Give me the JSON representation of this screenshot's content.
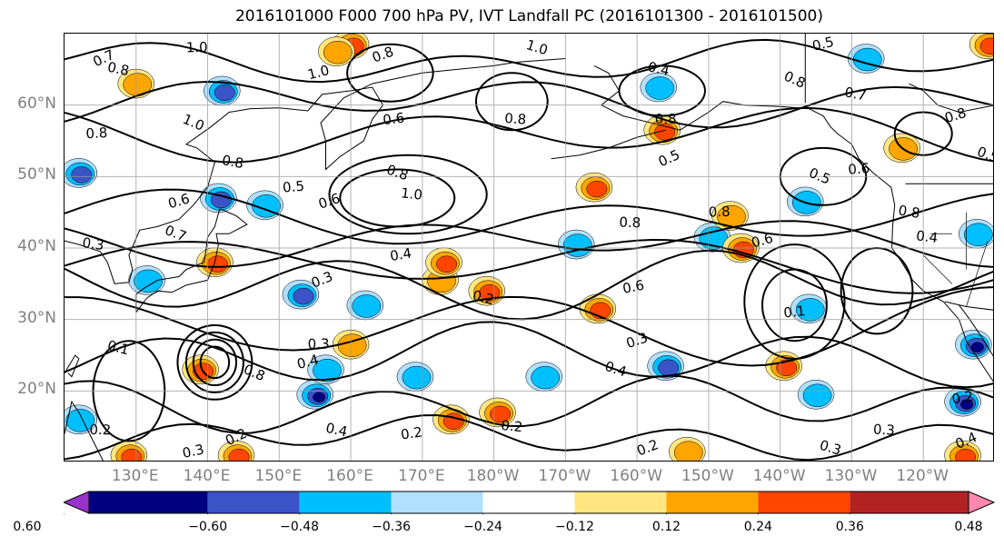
{
  "title": "2016101000 F000 700 hPa PV, IVT Landfall PC (2016101300 - 2016101500)",
  "lat_labels": [
    "60°N",
    "50°N",
    "40°N",
    "30°N",
    "20°N"
  ],
  "lon_labels": [
    "130°E",
    "140°E",
    "150°E",
    "160°E",
    "170°E",
    "180°W",
    "170°W",
    "160°W",
    "150°W",
    "140°W",
    "130°W",
    "120°W"
  ],
  "map_extent": {
    "lon_min_east": 120,
    "lon_max_east": 250,
    "lat_min": 10,
    "lat_max": 70
  },
  "colorbar": {
    "ticks": [
      "−0.60",
      "−0.48",
      "−0.36",
      "−0.24",
      "−0.12",
      "0.12",
      "0.24",
      "0.36",
      "0.48",
      "0.60"
    ],
    "colors": [
      "#9932CC",
      "#000080",
      "#3A54C8",
      "#00BFFF",
      "#B0E0FF",
      "#FFFFFF",
      "#FFE680",
      "#FFA500",
      "#FF4500",
      "#B22222",
      "#FF88B0"
    ]
  },
  "contour_labels": [
    {
      "text": "0.7",
      "lon": 125.5,
      "lat": 66.5
    },
    {
      "text": "0.8",
      "lon": 127.5,
      "lat": 65.0
    },
    {
      "text": "1.0",
      "lon": 138.5,
      "lat": 68.0
    },
    {
      "text": "1.0",
      "lon": 155.5,
      "lat": 64.5
    },
    {
      "text": "1.0",
      "lon": 138.0,
      "lat": 57.5
    },
    {
      "text": "0.8",
      "lon": 143.5,
      "lat": 52.0
    },
    {
      "text": "0.8",
      "lon": 124.5,
      "lat": 56.0
    },
    {
      "text": "0.6",
      "lon": 136.0,
      "lat": 46.5
    },
    {
      "text": "0.7",
      "lon": 135.5,
      "lat": 42.0
    },
    {
      "text": "0.3",
      "lon": 124.0,
      "lat": 40.5
    },
    {
      "text": "0.5",
      "lon": 152.0,
      "lat": 48.5
    },
    {
      "text": "0.6",
      "lon": 157.0,
      "lat": 46.5
    },
    {
      "text": "0.8",
      "lon": 166.5,
      "lat": 50.5
    },
    {
      "text": "1.0",
      "lon": 168.5,
      "lat": 47.5
    },
    {
      "text": "0.6",
      "lon": 166.0,
      "lat": 58.0
    },
    {
      "text": "0.8",
      "lon": 164.5,
      "lat": 67.0
    },
    {
      "text": "1.0",
      "lon": 186.0,
      "lat": 68.0
    },
    {
      "text": "0.8",
      "lon": 183.0,
      "lat": 58.0
    },
    {
      "text": "0.4",
      "lon": 167.0,
      "lat": 39.0
    },
    {
      "text": "0.3",
      "lon": 156.0,
      "lat": 35.5
    },
    {
      "text": "0.2",
      "lon": 178.5,
      "lat": 33.0
    },
    {
      "text": "0.8",
      "lon": 199.0,
      "lat": 43.5
    },
    {
      "text": "0.6",
      "lon": 199.5,
      "lat": 34.5
    },
    {
      "text": "0.5",
      "lon": 204.5,
      "lat": 52.5
    },
    {
      "text": "0.4",
      "lon": 203.0,
      "lat": 65.0
    },
    {
      "text": "0.8",
      "lon": 204.0,
      "lat": 58.0
    },
    {
      "text": "0.5",
      "lon": 226.0,
      "lat": 68.5
    },
    {
      "text": "0.8",
      "lon": 222.0,
      "lat": 63.5
    },
    {
      "text": "0.7",
      "lon": 230.5,
      "lat": 61.5
    },
    {
      "text": "0.8",
      "lon": 211.5,
      "lat": 45.0
    },
    {
      "text": "0.6",
      "lon": 217.5,
      "lat": 41.0
    },
    {
      "text": "0.5",
      "lon": 225.5,
      "lat": 50.0
    },
    {
      "text": "0.8",
      "lon": 238.0,
      "lat": 45.0
    },
    {
      "text": "0.6",
      "lon": 231.0,
      "lat": 51.0
    },
    {
      "text": "0.8",
      "lon": 244.5,
      "lat": 58.5
    },
    {
      "text": "0.5",
      "lon": 249.0,
      "lat": 53.0
    },
    {
      "text": "0.4",
      "lon": 240.5,
      "lat": 41.5
    },
    {
      "text": "0.1",
      "lon": 222.0,
      "lat": 31.0
    },
    {
      "text": "0.3",
      "lon": 200.0,
      "lat": 27.0
    },
    {
      "text": "0.4",
      "lon": 197.0,
      "lat": 23.0
    },
    {
      "text": "0.2",
      "lon": 182.5,
      "lat": 15.0
    },
    {
      "text": "0.2",
      "lon": 168.5,
      "lat": 14.0
    },
    {
      "text": "0.2",
      "lon": 201.5,
      "lat": 12.0
    },
    {
      "text": "0.3",
      "lon": 227.0,
      "lat": 12.0
    },
    {
      "text": "0.3",
      "lon": 234.5,
      "lat": 14.5
    },
    {
      "text": "0.2",
      "lon": 245.5,
      "lat": 19.0
    },
    {
      "text": "0.4",
      "lon": 246.0,
      "lat": 13.0
    },
    {
      "text": "0.1",
      "lon": 127.5,
      "lat": 26.0
    },
    {
      "text": "0.2",
      "lon": 125.0,
      "lat": 14.5
    },
    {
      "text": "0.3",
      "lon": 138.0,
      "lat": 11.5
    },
    {
      "text": "0.2",
      "lon": 144.0,
      "lat": 13.5
    },
    {
      "text": "0.4",
      "lon": 158.0,
      "lat": 14.5
    },
    {
      "text": "0.3",
      "lon": 155.5,
      "lat": 26.5
    },
    {
      "text": "0.4",
      "lon": 154.0,
      "lat": 24.0
    },
    {
      "text": "0.8",
      "lon": 146.5,
      "lat": 22.5
    }
  ],
  "shading_spots": [
    {
      "lon": 142.0,
      "lat": 62.0,
      "v": -0.4
    },
    {
      "lon": 130.0,
      "lat": 63.0,
      "v": 0.28
    },
    {
      "lon": 160.0,
      "lat": 68.5,
      "v": 0.4
    },
    {
      "lon": 158.0,
      "lat": 67.5,
      "v": 0.26
    },
    {
      "lon": 122.0,
      "lat": 50.5,
      "v": -0.45
    },
    {
      "lon": 141.5,
      "lat": 47.0,
      "v": -0.42
    },
    {
      "lon": 148.0,
      "lat": 46.0,
      "v": -0.3
    },
    {
      "lon": 141.0,
      "lat": 38.0,
      "v": 0.38
    },
    {
      "lon": 131.5,
      "lat": 35.5,
      "v": -0.28
    },
    {
      "lon": 153.0,
      "lat": 33.5,
      "v": -0.4
    },
    {
      "lon": 162.0,
      "lat": 32.0,
      "v": -0.26
    },
    {
      "lon": 160.0,
      "lat": 26.5,
      "v": 0.35
    },
    {
      "lon": 139.0,
      "lat": 23.0,
      "v": 0.38
    },
    {
      "lon": 155.0,
      "lat": 19.5,
      "v": -0.5
    },
    {
      "lon": 156.5,
      "lat": 23.0,
      "v": -0.3
    },
    {
      "lon": 172.5,
      "lat": 35.5,
      "v": 0.32
    },
    {
      "lon": 173.0,
      "lat": 38.0,
      "v": 0.42
    },
    {
      "lon": 179.0,
      "lat": 34.0,
      "v": 0.36
    },
    {
      "lon": 169.0,
      "lat": 22.0,
      "v": -0.28
    },
    {
      "lon": 180.5,
      "lat": 17.0,
      "v": 0.4
    },
    {
      "lon": 174.0,
      "lat": 16.0,
      "v": 0.36
    },
    {
      "lon": 187.0,
      "lat": 22.0,
      "v": -0.26
    },
    {
      "lon": 191.5,
      "lat": 40.5,
      "v": -0.3
    },
    {
      "lon": 194.0,
      "lat": 48.5,
      "v": 0.45
    },
    {
      "lon": 194.5,
      "lat": 31.5,
      "v": 0.36
    },
    {
      "lon": 203.0,
      "lat": 62.5,
      "v": -0.3
    },
    {
      "lon": 203.5,
      "lat": 56.5,
      "v": 0.4
    },
    {
      "lon": 204.0,
      "lat": 23.5,
      "v": -0.4
    },
    {
      "lon": 210.5,
      "lat": 41.5,
      "v": -0.28
    },
    {
      "lon": 214.5,
      "lat": 40.0,
      "v": 0.36
    },
    {
      "lon": 213.0,
      "lat": 44.5,
      "v": 0.28
    },
    {
      "lon": 223.5,
      "lat": 46.5,
      "v": -0.3
    },
    {
      "lon": 220.5,
      "lat": 23.5,
      "v": 0.42
    },
    {
      "lon": 224.0,
      "lat": 31.5,
      "v": -0.35
    },
    {
      "lon": 225.0,
      "lat": 19.5,
      "v": -0.24
    },
    {
      "lon": 207.0,
      "lat": 11.5,
      "v": 0.35
    },
    {
      "lon": 144.0,
      "lat": 11.0,
      "v": 0.4
    },
    {
      "lon": 129.0,
      "lat": 11.0,
      "v": 0.42
    },
    {
      "lon": 122.0,
      "lat": 16.0,
      "v": -0.35
    },
    {
      "lon": 247.0,
      "lat": 26.5,
      "v": -0.5
    },
    {
      "lon": 245.5,
      "lat": 18.5,
      "v": -0.48
    },
    {
      "lon": 245.5,
      "lat": 11.0,
      "v": 0.38
    },
    {
      "lon": 232.0,
      "lat": 66.5,
      "v": -0.26
    },
    {
      "lon": 249.0,
      "lat": 68.5,
      "v": 0.38
    },
    {
      "lon": 237.0,
      "lat": 54.0,
      "v": 0.3
    },
    {
      "lon": 247.5,
      "lat": 42.0,
      "v": -0.26
    }
  ],
  "closed_contours": [
    {
      "lon": 141.0,
      "lat": 24.0,
      "rx": 2.0,
      "ry": 2.2
    },
    {
      "lon": 141.0,
      "lat": 24.0,
      "rx": 3.0,
      "ry": 3.2
    },
    {
      "lon": 141.0,
      "lat": 24.0,
      "rx": 4.0,
      "ry": 4.2
    },
    {
      "lon": 141.0,
      "lat": 24.0,
      "rx": 5.2,
      "ry": 5.2
    },
    {
      "lon": 166.5,
      "lat": 47.0,
      "rx": 8.0,
      "ry": 4.0
    },
    {
      "lon": 168.0,
      "lat": 47.5,
      "rx": 11.0,
      "ry": 5.5
    },
    {
      "lon": 165.5,
      "lat": 64.5,
      "rx": 6.0,
      "ry": 4.0
    },
    {
      "lon": 182.5,
      "lat": 60.5,
      "rx": 5.0,
      "ry": 4.0
    },
    {
      "lon": 203.5,
      "lat": 62.0,
      "rx": 6.0,
      "ry": 3.5
    },
    {
      "lon": 222.0,
      "lat": 32.0,
      "rx": 4.5,
      "ry": 5.0
    },
    {
      "lon": 222.0,
      "lat": 32.5,
      "rx": 7.0,
      "ry": 8.0
    },
    {
      "lon": 226.0,
      "lat": 50.0,
      "rx": 6.0,
      "ry": 4.0
    },
    {
      "lon": 233.5,
      "lat": 34.0,
      "rx": 5.0,
      "ry": 6.0
    },
    {
      "lon": 240.0,
      "lat": 56.0,
      "rx": 4.0,
      "ry": 3.0
    },
    {
      "lon": 129.0,
      "lat": 20.0,
      "rx": 5.0,
      "ry": 7.0
    }
  ]
}
